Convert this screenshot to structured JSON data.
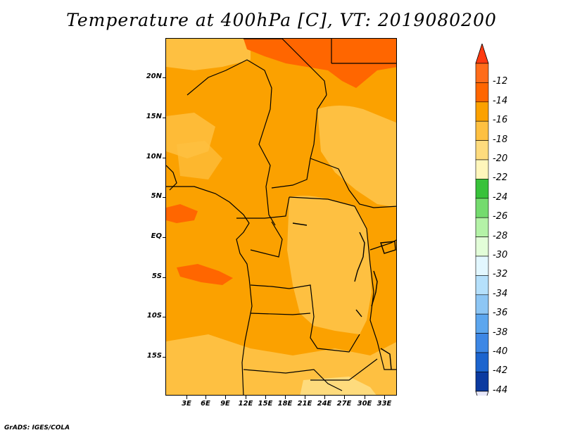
{
  "title": "Temperature at 400hPa [C], VT: 2019080200",
  "credit": "GrADS: IGES/COLA",
  "map": {
    "region": "Central Africa",
    "lat_labels": [
      "20N",
      "15N",
      "10N",
      "5N",
      "EQ",
      "5S",
      "10S",
      "15S"
    ],
    "lon_labels": [
      "3E",
      "6E",
      "9E",
      "12E",
      "15E",
      "18E",
      "21E",
      "24E",
      "27E",
      "30E",
      "33E"
    ]
  },
  "colorbar": {
    "unit": "C",
    "levels": [
      {
        "label": "-12",
        "color": "#ff6c1a"
      },
      {
        "label": "-14",
        "color": "#ff6600"
      },
      {
        "label": "-16",
        "color": "#fba100"
      },
      {
        "label": "-18",
        "color": "#fec041"
      },
      {
        "label": "-20",
        "color": "#fedb7d"
      },
      {
        "label": "-22",
        "color": "#fff6bb"
      },
      {
        "label": "-24",
        "color": "#38c23a"
      },
      {
        "label": "-26",
        "color": "#74db6e"
      },
      {
        "label": "-28",
        "color": "#b4f2a7"
      },
      {
        "label": "-30",
        "color": "#e2fdd8"
      },
      {
        "label": "-32",
        "color": "#e2f7ff"
      },
      {
        "label": "-34",
        "color": "#b5e0fb"
      },
      {
        "label": "-36",
        "color": "#8dc6f4"
      },
      {
        "label": "-38",
        "color": "#5ca6ee"
      },
      {
        "label": "-40",
        "color": "#3d87e5"
      },
      {
        "label": "-42",
        "color": "#1c64ce"
      },
      {
        "label": "-44",
        "color": "#0b3aa0"
      }
    ],
    "below_color": "#0c1678",
    "min_arrow_color": "#e8e8fa",
    "max_arrow_color": "#ff3a10"
  }
}
